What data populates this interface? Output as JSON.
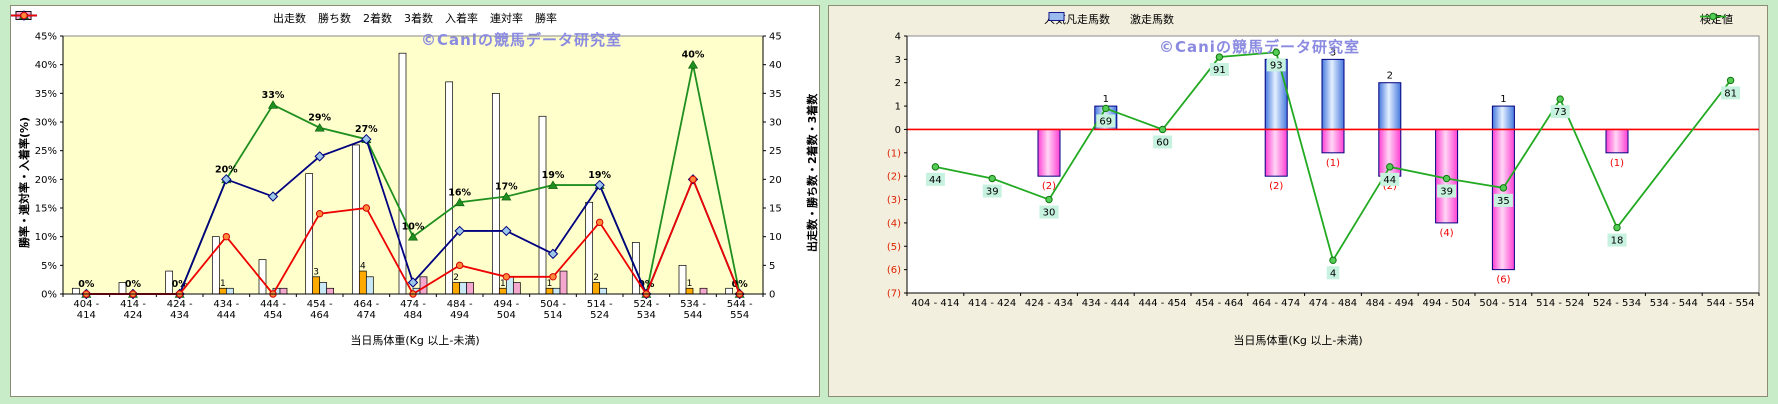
{
  "page": {
    "background": "#C8ECC8",
    "watermark": "©Caniの競馬データ研究室",
    "watermark_color": "#8A8AE0"
  },
  "chart_data": [
    {
      "type": "combo-bar-line",
      "panel_bg": "#FFFFFF",
      "plot_bg": "#FFFFCC",
      "categories": [
        "404 - 414",
        "414 - 424",
        "424 - 434",
        "434 - 444",
        "444 - 454",
        "454 - 464",
        "464 - 474",
        "474 - 484",
        "484 - 494",
        "494 - 504",
        "504 - 514",
        "514 - 524",
        "524 - 534",
        "534 - 544",
        "544 - 554"
      ],
      "bar_series": [
        {
          "name": "出走数",
          "color": "#FFFFFF",
          "values": [
            1,
            2,
            4,
            10,
            6,
            21,
            26,
            42,
            37,
            35,
            31,
            16,
            9,
            5,
            1
          ],
          "show_labels": false
        },
        {
          "name": "勝ち数",
          "color": "#FFAA00",
          "values": [
            0,
            0,
            0,
            1,
            0,
            3,
            4,
            0,
            2,
            1,
            1,
            2,
            0,
            1,
            0
          ],
          "show_labels": true
        },
        {
          "name": "2着数",
          "color": "#C9E9F6",
          "values": [
            0,
            0,
            0,
            1,
            1,
            2,
            3,
            1,
            2,
            3,
            1,
            1,
            0,
            0,
            0
          ],
          "show_labels": false
        },
        {
          "name": "3着数",
          "color": "#F5A8CE",
          "values": [
            0,
            0,
            0,
            0,
            1,
            1,
            0,
            3,
            2,
            2,
            4,
            0,
            0,
            1,
            0
          ],
          "show_labels": false
        }
      ],
      "line_series": [
        {
          "name": "入着率",
          "color": "#1F8F1F",
          "marker": "triangle",
          "marker_fill": "#1F8F1F",
          "marker_stroke": "#0A560A",
          "values": [
            0,
            0,
            0,
            20,
            33,
            29,
            27,
            10,
            16,
            17,
            19,
            19,
            0,
            40,
            0
          ],
          "labels": [
            "0%",
            "0%",
            "0%",
            "20%",
            "33%",
            "29%",
            "27%",
            "10%",
            "16%",
            "17%",
            "19%",
            "19%",
            "0%",
            "40%",
            "0%"
          ]
        },
        {
          "name": "連対率",
          "color": "#000080",
          "marker": "diamond",
          "marker_fill": "#9CC7E8",
          "marker_stroke": "#000080",
          "values": [
            0,
            0,
            0,
            20,
            17,
            24,
            27,
            2,
            11,
            11,
            7,
            19,
            0,
            20,
            0
          ],
          "labels": null
        },
        {
          "name": "勝率",
          "color": "#EE0000",
          "marker": "circle",
          "marker_fill": "#FF8A3C",
          "marker_stroke": "#D40000",
          "values": [
            0,
            0,
            0,
            10,
            0,
            14,
            15,
            0,
            5,
            3,
            3,
            12.5,
            0,
            20,
            0
          ],
          "labels": null
        }
      ],
      "left_axis": {
        "title": "勝率・連対率・入着率(%)",
        "min": 0,
        "max": 45,
        "step": 5,
        "ticks": [
          "0%",
          "5%",
          "10%",
          "15%",
          "20%",
          "25%",
          "30%",
          "35%",
          "40%",
          "45%"
        ]
      },
      "right_axis": {
        "title": "出走数・勝ち数・2着数・3着数",
        "min": 0,
        "max": 45,
        "step": 5,
        "ticks": [
          "0",
          "5",
          "10",
          "15",
          "20",
          "25",
          "30",
          "35",
          "40",
          "45"
        ]
      },
      "x_axis": {
        "title": "当日馬体重(Kg 以上-未満)"
      }
    },
    {
      "type": "combo-bar-line",
      "panel_bg": "#F3EFDE",
      "plot_bg": "#FFFFFF",
      "zero_line": "#FF0000",
      "categories": [
        "404 - 414",
        "414 - 424",
        "424 - 434",
        "434 - 444",
        "444 - 454",
        "454 - 464",
        "464 - 474",
        "474 - 484",
        "484 - 494",
        "494 - 504",
        "504 - 514",
        "514 - 524",
        "524 - 534",
        "534 - 544",
        "544 - 554"
      ],
      "bar_series": [
        {
          "name": "人気凡走馬数",
          "direction": "down",
          "color_light": "#FFD6F5",
          "color_dark": "#FF3FD4",
          "legend_fill": "#FF99EA",
          "border": "#000080",
          "label_color": "#EE0000",
          "values": [
            0,
            0,
            2,
            0,
            0,
            0,
            2,
            1,
            2,
            4,
            6,
            0,
            1,
            0,
            0
          ],
          "labels": [
            "",
            "",
            "(2)",
            "",
            "",
            "",
            "(2)",
            "(1)",
            "(2)",
            "(4)",
            "(6)",
            "",
            "(1)",
            "",
            ""
          ]
        },
        {
          "name": "激走馬数",
          "direction": "up",
          "color_light": "#E4F0FF",
          "color_dark": "#4477DD",
          "legend_fill": "#99BBEE",
          "border": "#000080",
          "label_color": "#000000",
          "values": [
            0,
            0,
            0,
            1,
            0,
            0,
            3,
            3,
            2,
            0,
            1,
            0,
            0,
            0,
            0
          ],
          "labels": [
            "",
            "",
            "",
            "1",
            "",
            "",
            "3",
            "3",
            "2",
            "",
            "1",
            "",
            "",
            "",
            ""
          ]
        }
      ],
      "line_series": [
        {
          "name": "検定値",
          "color": "#22AA22",
          "marker": "circle",
          "marker_fill": "#55CC55",
          "marker_stroke": "#117711",
          "label_bg": "#C6F2DF",
          "values": [
            44,
            39,
            30,
            69,
            60,
            91,
            93,
            4,
            44,
            39,
            35,
            73,
            18,
            null,
            81
          ],
          "labels": [
            "44",
            "39",
            "30",
            "69",
            "60",
            "91",
            "93",
            "4",
            "44",
            "39",
            "35",
            "73",
            "18",
            "",
            "81"
          ],
          "plot_transform": {
            "offset": 60,
            "divisor": 10
          }
        }
      ],
      "y_axis": {
        "min": -7,
        "max": 4,
        "step": 1,
        "negative_color": "#DD2200",
        "ticks": [
          "4",
          "3",
          "2",
          "1",
          "0",
          "(1)",
          "(2)",
          "(3)",
          "(4)",
          "(5)",
          "(6)",
          "(7)"
        ]
      },
      "x_axis": {
        "title": "当日馬体重(Kg 以上-未満)"
      }
    }
  ]
}
